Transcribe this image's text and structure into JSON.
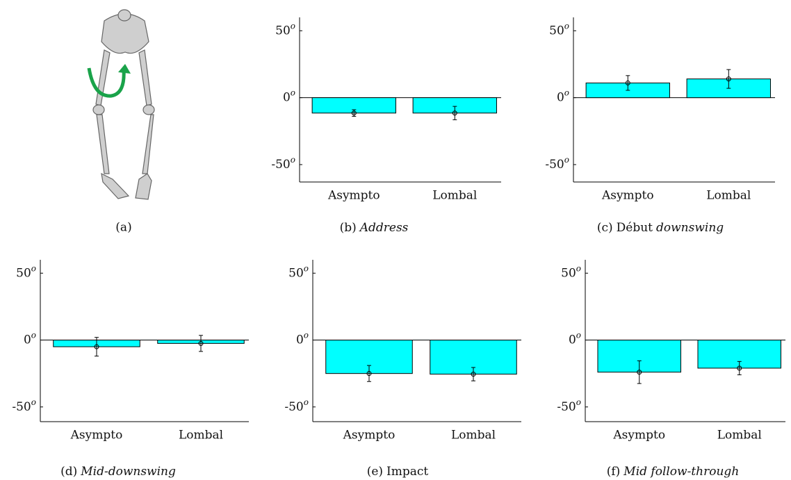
{
  "illustration": {
    "caption": "(a)"
  },
  "chart_data": [
    {
      "type": "bar",
      "caption": [
        {
          "text": "(b)",
          "italic": false
        },
        {
          "text": "Address",
          "italic": true
        }
      ],
      "categories": [
        "Asympto",
        "Lombal"
      ],
      "values": [
        -11.5,
        -11.5
      ],
      "errors": [
        2.5,
        5
      ],
      "color": "#00ffff",
      "ylim": [
        -63,
        60
      ],
      "yticks": [
        -50,
        0,
        50
      ],
      "ytick_suffix": "o"
    },
    {
      "type": "bar",
      "caption": [
        {
          "text": "(c)",
          "italic": false
        },
        {
          "text": "Début",
          "italic": false
        },
        {
          "text": "downswing",
          "italic": true
        }
      ],
      "categories": [
        "Asympto",
        "Lombal"
      ],
      "values": [
        11,
        14
      ],
      "errors": [
        5.5,
        7
      ],
      "color": "#00ffff",
      "ylim": [
        -63,
        60
      ],
      "yticks": [
        -50,
        0,
        50
      ],
      "ytick_suffix": "o"
    },
    {
      "type": "bar",
      "caption": [
        {
          "text": "(d)",
          "italic": false
        },
        {
          "text": "Mid-downswing",
          "italic": true
        }
      ],
      "categories": [
        "Asympto",
        "Lombal"
      ],
      "values": [
        -5,
        -2.5
      ],
      "errors": [
        7,
        6
      ],
      "color": "#00ffff",
      "ylim": [
        -61,
        60
      ],
      "yticks": [
        -50,
        0,
        50
      ],
      "ytick_suffix": "o"
    },
    {
      "type": "bar",
      "caption": [
        {
          "text": "(e)",
          "italic": false
        },
        {
          "text": "Impact",
          "italic": false
        }
      ],
      "categories": [
        "Asympto",
        "Lombal"
      ],
      "values": [
        -25,
        -25.5
      ],
      "errors": [
        6,
        5
      ],
      "color": "#00ffff",
      "ylim": [
        -61,
        60
      ],
      "yticks": [
        -50,
        0,
        50
      ],
      "ytick_suffix": "o"
    },
    {
      "type": "bar",
      "caption": [
        {
          "text": "(f)",
          "italic": false
        },
        {
          "text": "Mid follow-through",
          "italic": true
        }
      ],
      "categories": [
        "Asympto",
        "Lombal"
      ],
      "values": [
        -24,
        -21
      ],
      "errors": [
        8.5,
        5
      ],
      "color": "#00ffff",
      "ylim": [
        -61,
        60
      ],
      "yticks": [
        -50,
        0,
        50
      ],
      "ytick_suffix": "o"
    }
  ]
}
